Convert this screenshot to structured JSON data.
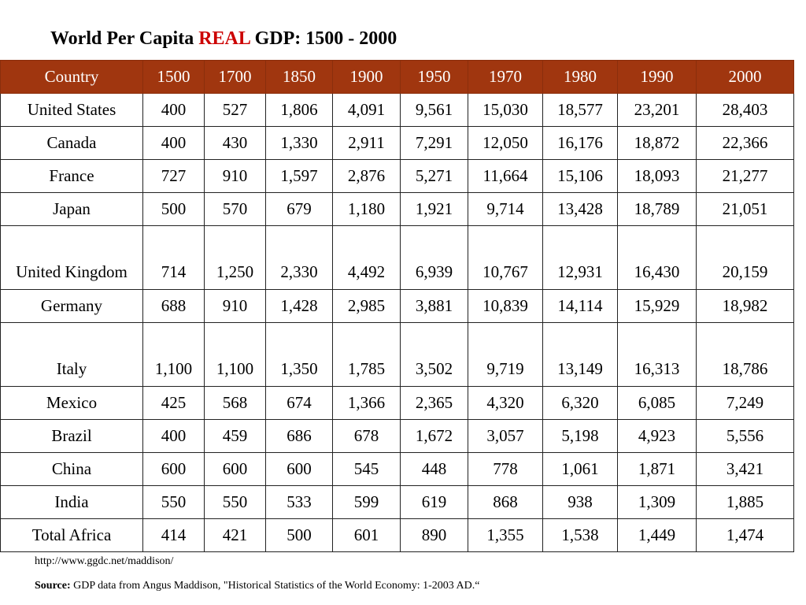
{
  "title": {
    "prefix": "World Per Capita ",
    "accent": "REAL",
    "suffix": " GDP:  1500 - 2000",
    "accent_color": "#cc0000"
  },
  "table": {
    "header_color": "#a0360f",
    "columns": [
      "Country",
      "1500",
      "1700",
      "1850",
      "1900",
      "1950",
      "1970",
      "1980",
      "1990",
      "2000"
    ],
    "rows": [
      [
        "United States",
        "400",
        "527",
        "1,806",
        "4,091",
        "9,561",
        "15,030",
        "18,577",
        "23,201",
        "28,403"
      ],
      [
        "Canada",
        "400",
        "430",
        "1,330",
        "2,911",
        "7,291",
        "12,050",
        "16,176",
        "18,872",
        "22,366"
      ],
      [
        "France",
        "727",
        "910",
        "1,597",
        "2,876",
        "5,271",
        "11,664",
        "15,106",
        "18,093",
        "21,277"
      ],
      [
        "Japan",
        "500",
        "570",
        "679",
        "1,180",
        "1,921",
        "9,714",
        "13,428",
        "18,789",
        "21,051"
      ],
      [
        "United Kingdom",
        "714",
        "1,250",
        "2,330",
        "4,492",
        "6,939",
        "10,767",
        "12,931",
        "16,430",
        "20,159"
      ],
      [
        "Germany",
        "688",
        "910",
        "1,428",
        "2,985",
        "3,881",
        "10,839",
        "14,114",
        "15,929",
        "18,982"
      ],
      [
        "Italy",
        "1,100",
        "1,100",
        "1,350",
        "1,785",
        "3,502",
        "9,719",
        "13,149",
        "16,313",
        "18,786"
      ],
      [
        "Mexico",
        "425",
        "568",
        "674",
        "1,366",
        "2,365",
        "4,320",
        "6,320",
        "6,085",
        "7,249"
      ],
      [
        "Brazil",
        "400",
        "459",
        "686",
        "678",
        "1,672",
        "3,057",
        "5,198",
        "4,923",
        "5,556"
      ],
      [
        "China",
        "600",
        "600",
        "600",
        "545",
        "448",
        "778",
        "1,061",
        "1,871",
        "3,421"
      ],
      [
        "India",
        "550",
        "550",
        "533",
        "599",
        "619",
        "868",
        "938",
        "1,309",
        "1,885"
      ],
      [
        "Total Africa",
        "414",
        "421",
        "500",
        "601",
        "890",
        "1,355",
        "1,538",
        "1,449",
        "1,474"
      ]
    ]
  },
  "footer": {
    "url": "http://www.ggdc.net/maddison/",
    "source_label": "Source:",
    "source_text": "  GDP data from Angus Maddison, \"Historical Statistics of the World Economy: 1-2003 AD.“"
  }
}
